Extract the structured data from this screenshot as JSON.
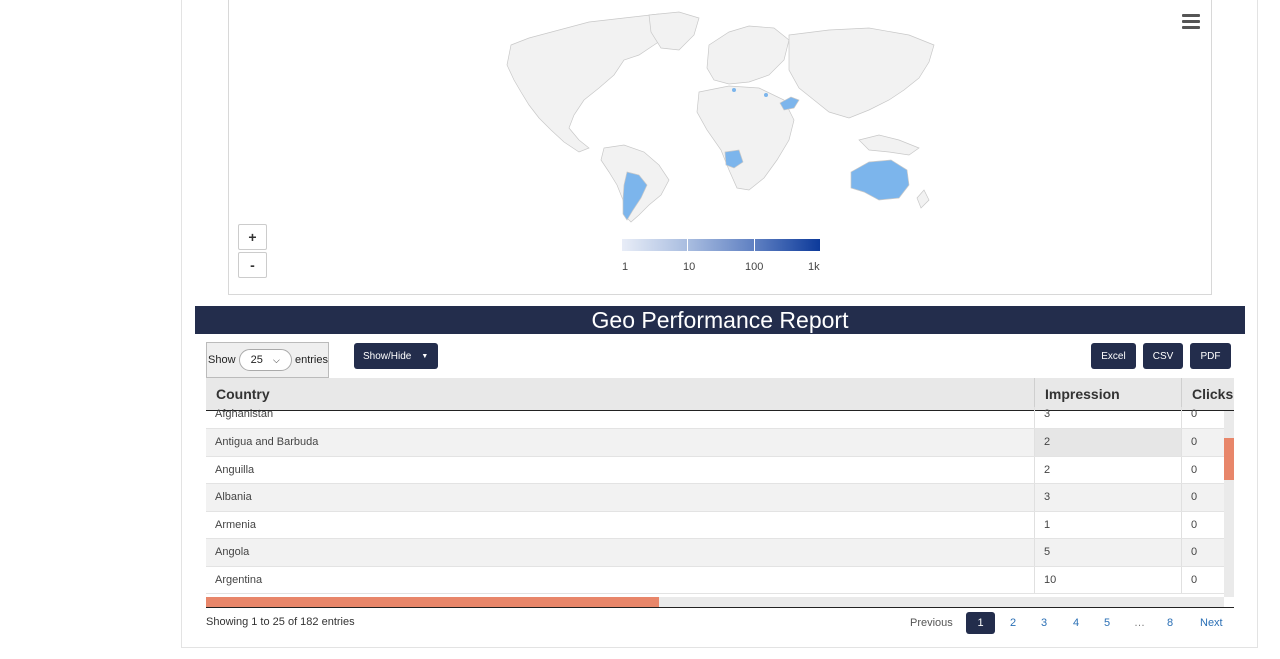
{
  "map": {
    "zoom_in_label": "+",
    "zoom_out_label": "-",
    "legend": {
      "labels": [
        "1",
        "10",
        "100",
        "1k"
      ],
      "colors": [
        "#e8edf7",
        "#a9bde0",
        "#5f80c2",
        "#0d3a9a"
      ]
    },
    "highlight_color": "#7cb5ec",
    "land_color": "#f2f2f2"
  },
  "report": {
    "title": "Geo Performance Report",
    "show_label": "Show",
    "entries_value": "25",
    "entries_label": "entries",
    "showhide_label": "Show/Hide",
    "export_buttons": [
      "Excel",
      "CSV",
      "PDF"
    ],
    "columns": [
      "Country",
      "Impression",
      "Clicks"
    ],
    "rows": [
      {
        "country": "Afghanistan",
        "impression": "3",
        "clicks": "0"
      },
      {
        "country": "Antigua and Barbuda",
        "impression": "2",
        "clicks": "0"
      },
      {
        "country": "Anguilla",
        "impression": "2",
        "clicks": "0"
      },
      {
        "country": "Albania",
        "impression": "3",
        "clicks": "0"
      },
      {
        "country": "Armenia",
        "impression": "1",
        "clicks": "0"
      },
      {
        "country": "Angola",
        "impression": "5",
        "clicks": "0"
      },
      {
        "country": "Argentina",
        "impression": "10",
        "clicks": "0"
      }
    ],
    "info": "Showing 1 to 25 of 182 entries",
    "pagination": {
      "previous": "Previous",
      "pages": [
        "1",
        "2",
        "3",
        "4",
        "5",
        "…",
        "8"
      ],
      "active": "1",
      "next": "Next"
    }
  }
}
